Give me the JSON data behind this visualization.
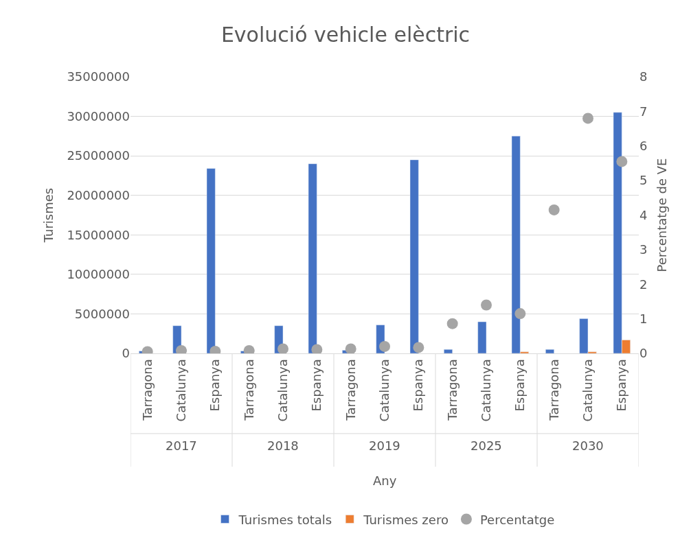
{
  "chart_data": {
    "type": "bar",
    "title": "Evolució vehicle elèctric",
    "xlabel": "Any",
    "ylabel": "Turismes",
    "y2label": "Percentatge de VE",
    "categories": [
      "Tarragona",
      "Catalunya",
      "Espanya",
      "Tarragona",
      "Catalunya",
      "Espanya",
      "Tarragona",
      "Catalunya",
      "Espanya",
      "Tarragona",
      "Catalunya",
      "Espanya",
      "Tarragona",
      "Catalunya",
      "Espanya"
    ],
    "annotations": [
      "2017",
      "2018",
      "2019",
      "2025",
      "2030"
    ],
    "series": [
      {
        "name": "Turismes totals",
        "color": "#4472c4",
        "values": [
          300000,
          3500000,
          23400000,
          300000,
          3500000,
          24000000,
          400000,
          3600000,
          24500000,
          500000,
          4000000,
          27500000,
          500000,
          4400000,
          30500000
        ]
      },
      {
        "name": "Turismes zero",
        "color": "#ed7d31",
        "values": [
          null,
          null,
          null,
          null,
          null,
          null,
          null,
          null,
          null,
          null,
          null,
          200000,
          null,
          200000,
          1700000
        ]
      },
      {
        "name": "Percentatge",
        "type": "scatter",
        "axis": "y2",
        "marker": "circle",
        "color": "#a5a5a5",
        "values": [
          0.05,
          0.08,
          0.06,
          0.08,
          0.13,
          0.11,
          0.13,
          0.2,
          0.17,
          0.86,
          1.4,
          1.15,
          4.15,
          6.8,
          5.55
        ]
      }
    ],
    "ylim": [
      0,
      35000000
    ],
    "yticks": [
      0,
      5000000,
      10000000,
      15000000,
      20000000,
      25000000,
      30000000,
      35000000
    ],
    "y2lim": [
      0,
      8
    ],
    "y2ticks": [
      0,
      1,
      2,
      3,
      4,
      5,
      6,
      7,
      8
    ],
    "grid": "y",
    "legend": "bottom"
  }
}
